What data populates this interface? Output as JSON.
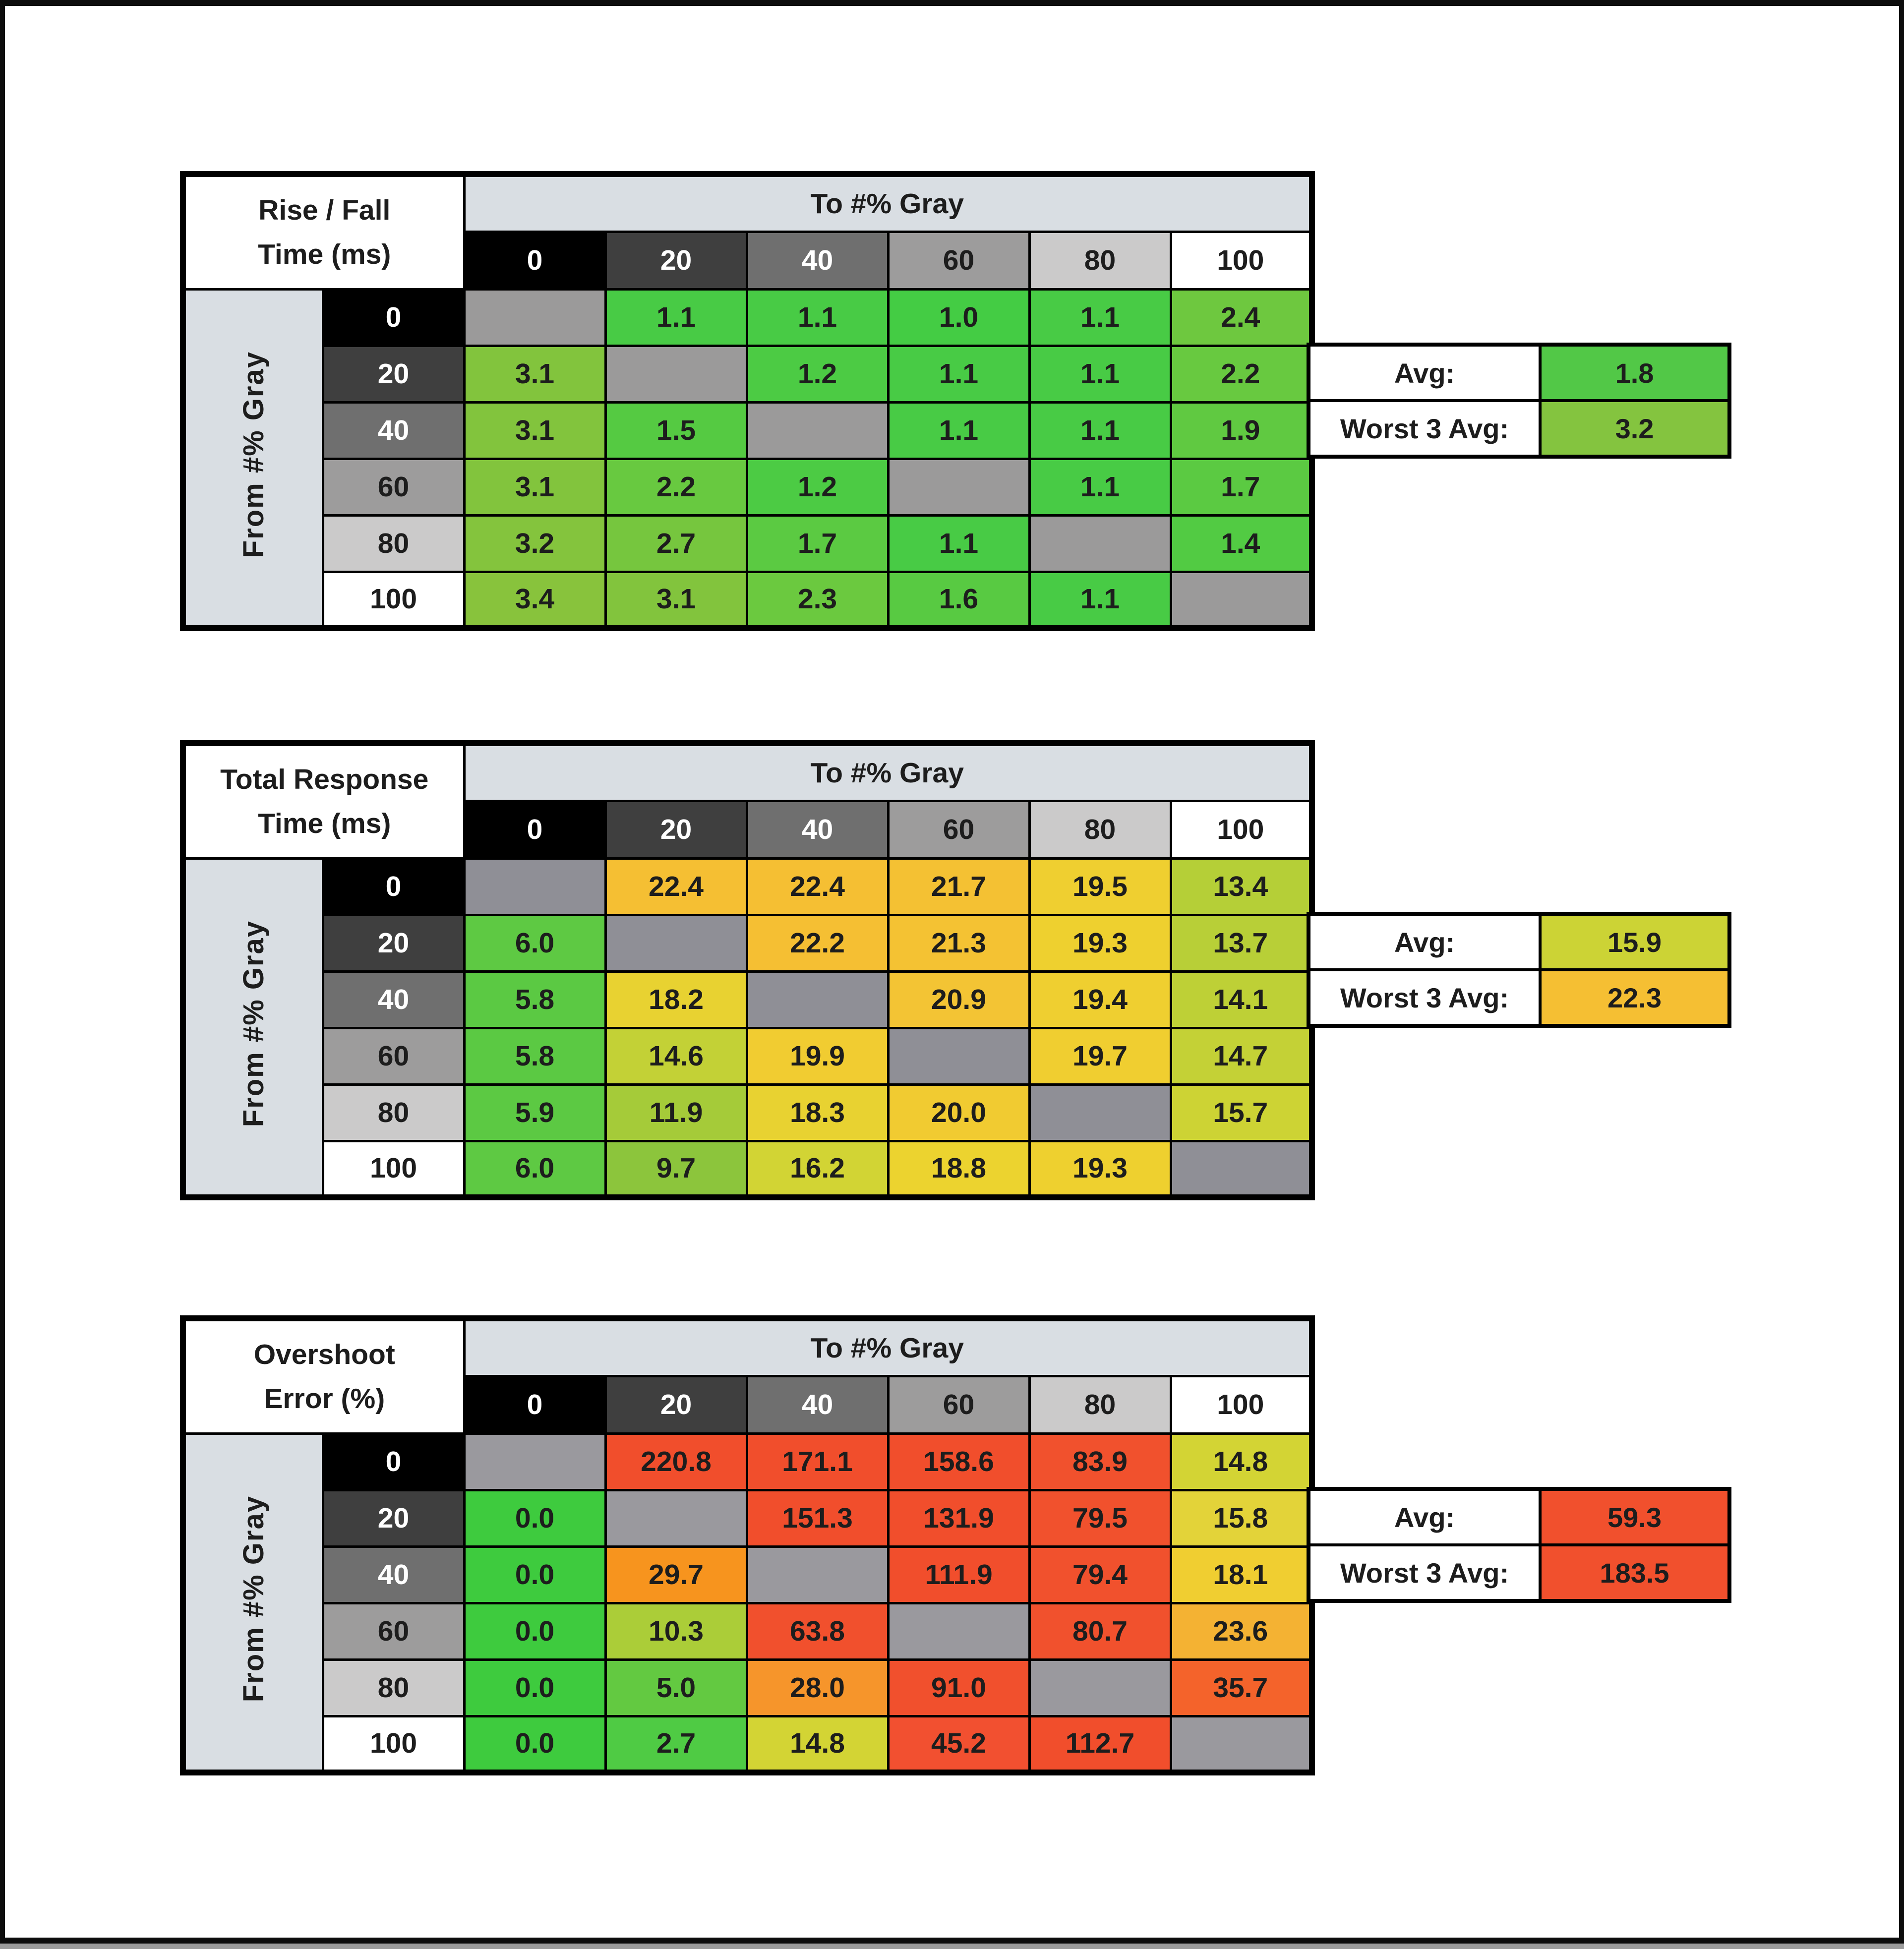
{
  "page": {
    "background": "#ffffff",
    "frame_color": "#0d0d0d",
    "bottom_strip_color": "#9c9c9c"
  },
  "header_shades": [
    {
      "bg": "#000000",
      "fg": "#ffffff"
    },
    {
      "bg": "#3f3f3f",
      "fg": "#ffffff"
    },
    {
      "bg": "#6f6f6f",
      "fg": "#ffffff"
    },
    {
      "bg": "#9d9c9c",
      "fg": "#1d1d1d"
    },
    {
      "bg": "#cbcaca",
      "fg": "#1d1d1d"
    },
    {
      "bg": "#ffffff",
      "fg": "#1d1d1d"
    }
  ],
  "banner_bg": "#d9dee3",
  "tables": [
    {
      "title_line1": "Rise / Fall",
      "title_line2": "Time (ms)",
      "banner": "To #% Gray",
      "row_axis_label": "From #% Gray",
      "col_headers": [
        "0",
        "20",
        "40",
        "60",
        "80",
        "100"
      ],
      "row_headers": [
        "0",
        "20",
        "40",
        "60",
        "80",
        "100"
      ],
      "diagonal_color": "#9b9a9a",
      "rows": [
        [
          null,
          {
            "v": "1.1",
            "c": "#48cb45"
          },
          {
            "v": "1.1",
            "c": "#48cb45"
          },
          {
            "v": "1.0",
            "c": "#44cc44"
          },
          {
            "v": "1.1",
            "c": "#48cb45"
          },
          {
            "v": "2.4",
            "c": "#6ec83f"
          }
        ],
        [
          {
            "v": "3.1",
            "c": "#82c43d"
          },
          null,
          {
            "v": "1.2",
            "c": "#4ccb44"
          },
          {
            "v": "1.1",
            "c": "#48cb45"
          },
          {
            "v": "1.1",
            "c": "#48cb45"
          },
          {
            "v": "2.2",
            "c": "#68c940"
          }
        ],
        [
          {
            "v": "3.1",
            "c": "#82c43d"
          },
          {
            "v": "1.5",
            "c": "#55ca42"
          },
          null,
          {
            "v": "1.1",
            "c": "#48cb45"
          },
          {
            "v": "1.1",
            "c": "#48cb45"
          },
          {
            "v": "1.9",
            "c": "#60c941"
          }
        ],
        [
          {
            "v": "3.1",
            "c": "#82c43d"
          },
          {
            "v": "2.2",
            "c": "#68c940"
          },
          {
            "v": "1.2",
            "c": "#4ccb44"
          },
          null,
          {
            "v": "1.1",
            "c": "#48cb45"
          },
          {
            "v": "1.7",
            "c": "#5bca42"
          }
        ],
        [
          {
            "v": "3.2",
            "c": "#84c43d"
          },
          {
            "v": "2.7",
            "c": "#76c63e"
          },
          {
            "v": "1.7",
            "c": "#5bca42"
          },
          {
            "v": "1.1",
            "c": "#48cb45"
          },
          null,
          {
            "v": "1.4",
            "c": "#52cb43"
          }
        ],
        [
          {
            "v": "3.4",
            "c": "#88c33c"
          },
          {
            "v": "3.1",
            "c": "#82c43d"
          },
          {
            "v": "2.3",
            "c": "#6bc93f"
          },
          {
            "v": "1.6",
            "c": "#58ca42"
          },
          {
            "v": "1.1",
            "c": "#48cb45"
          },
          null
        ]
      ],
      "summary": {
        "avg_label": "Avg:",
        "avg_value": "1.8",
        "avg_color": "#52c847",
        "worst_label": "Worst 3 Avg:",
        "worst_value": "3.2",
        "worst_color": "#84c43f"
      }
    },
    {
      "title_line1": "Total Response",
      "title_line2": "Time (ms)",
      "banner": "To #% Gray",
      "row_axis_label": "From #% Gray",
      "col_headers": [
        "0",
        "20",
        "40",
        "60",
        "80",
        "100"
      ],
      "row_headers": [
        "0",
        "20",
        "40",
        "60",
        "80",
        "100"
      ],
      "diagonal_color": "#8f8f96",
      "rows": [
        [
          null,
          {
            "v": "22.4",
            "c": "#f5bf33"
          },
          {
            "v": "22.4",
            "c": "#f5bf33"
          },
          {
            "v": "21.7",
            "c": "#f4c133"
          },
          {
            "v": "19.5",
            "c": "#efcf30"
          },
          {
            "v": "13.4",
            "c": "#b5cf37"
          }
        ],
        [
          {
            "v": "6.0",
            "c": "#5ec943"
          },
          null,
          {
            "v": "22.2",
            "c": "#f5bf33"
          },
          {
            "v": "21.3",
            "c": "#f4c233"
          },
          {
            "v": "19.3",
            "c": "#eed02f"
          },
          {
            "v": "13.7",
            "c": "#b8cf37"
          }
        ],
        [
          {
            "v": "5.8",
            "c": "#5bc943"
          },
          {
            "v": "18.2",
            "c": "#e8d231"
          },
          null,
          {
            "v": "20.9",
            "c": "#f3c434"
          },
          {
            "v": "19.4",
            "c": "#efcf30"
          },
          {
            "v": "14.1",
            "c": "#bed036"
          }
        ],
        [
          {
            "v": "5.8",
            "c": "#5bc943"
          },
          {
            "v": "14.6",
            "c": "#c3d136"
          },
          {
            "v": "19.9",
            "c": "#f1cc31"
          },
          null,
          {
            "v": "19.7",
            "c": "#f0ce30"
          },
          {
            "v": "14.7",
            "c": "#c4d136"
          }
        ],
        [
          {
            "v": "5.9",
            "c": "#5cc943"
          },
          {
            "v": "11.9",
            "c": "#a5cb39"
          },
          {
            "v": "18.3",
            "c": "#e8d231"
          },
          {
            "v": "20.0",
            "c": "#f1cb31"
          },
          null,
          {
            "v": "15.7",
            "c": "#cdd334"
          }
        ],
        [
          {
            "v": "6.0",
            "c": "#5ec943"
          },
          {
            "v": "9.7",
            "c": "#8cc53c"
          },
          {
            "v": "16.2",
            "c": "#d2d434"
          },
          {
            "v": "18.8",
            "c": "#ecd32f"
          },
          {
            "v": "19.3",
            "c": "#eed02f"
          },
          null
        ]
      ],
      "summary": {
        "avg_label": "Avg:",
        "avg_value": "15.9",
        "avg_color": "#ccd335",
        "worst_label": "Worst 3 Avg:",
        "worst_value": "22.3",
        "worst_color": "#f5bf33"
      }
    },
    {
      "title_line1": "Overshoot",
      "title_line2": "Error (%)",
      "banner": "To #% Gray",
      "row_axis_label": "From #% Gray",
      "col_headers": [
        "0",
        "20",
        "40",
        "60",
        "80",
        "100"
      ],
      "row_headers": [
        "0",
        "20",
        "40",
        "60",
        "80",
        "100"
      ],
      "diagonal_color": "#9a999e",
      "rows": [
        [
          null,
          {
            "v": "220.8",
            "c": "#f14e2c"
          },
          {
            "v": "171.1",
            "c": "#f14e2c"
          },
          {
            "v": "158.6",
            "c": "#f14e2c"
          },
          {
            "v": "83.9",
            "c": "#f1512d"
          },
          {
            "v": "14.8",
            "c": "#d3d434"
          }
        ],
        [
          {
            "v": "0.0",
            "c": "#3ecb3e"
          },
          null,
          {
            "v": "151.3",
            "c": "#f14e2c"
          },
          {
            "v": "131.9",
            "c": "#f14e2c"
          },
          {
            "v": "79.5",
            "c": "#f1512d"
          },
          {
            "v": "15.8",
            "c": "#e3d339"
          }
        ],
        [
          {
            "v": "0.0",
            "c": "#3ecb3e"
          },
          {
            "v": "29.7",
            "c": "#f7941e"
          },
          null,
          {
            "v": "111.9",
            "c": "#f14e2c"
          },
          {
            "v": "79.4",
            "c": "#f1512d"
          },
          {
            "v": "18.1",
            "c": "#f0ce31"
          }
        ],
        [
          {
            "v": "0.0",
            "c": "#3ecb3e"
          },
          {
            "v": "10.3",
            "c": "#abcd38"
          },
          {
            "v": "63.8",
            "c": "#f1502d"
          },
          null,
          {
            "v": "80.7",
            "c": "#f1512d"
          },
          {
            "v": "23.6",
            "c": "#f4b233"
          }
        ],
        [
          {
            "v": "0.0",
            "c": "#3ecb3e"
          },
          {
            "v": "5.0",
            "c": "#63c941"
          },
          {
            "v": "28.0",
            "c": "#f6952b"
          },
          {
            "v": "91.0",
            "c": "#f1502d"
          },
          null,
          {
            "v": "35.7",
            "c": "#f4632b"
          }
        ],
        [
          {
            "v": "0.0",
            "c": "#3ecb3e"
          },
          {
            "v": "2.7",
            "c": "#4fcb44"
          },
          {
            "v": "14.8",
            "c": "#d3d434"
          },
          {
            "v": "45.2",
            "c": "#f25030"
          },
          {
            "v": "112.7",
            "c": "#f14e2c"
          },
          null
        ]
      ],
      "summary": {
        "avg_label": "Avg:",
        "avg_value": "59.3",
        "avg_color": "#f1502d",
        "worst_label": "Worst 3 Avg:",
        "worst_value": "183.5",
        "worst_color": "#f1502d"
      }
    }
  ],
  "chart_data": [
    {
      "type": "heatmap",
      "title": "Rise / Fall Time (ms)",
      "xlabel": "To #% Gray",
      "ylabel": "From #% Gray",
      "x_categories": [
        0,
        20,
        40,
        60,
        80,
        100
      ],
      "y_categories": [
        0,
        20,
        40,
        60,
        80,
        100
      ],
      "values": [
        [
          null,
          1.1,
          1.1,
          1.0,
          1.1,
          2.4
        ],
        [
          3.1,
          null,
          1.2,
          1.1,
          1.1,
          2.2
        ],
        [
          3.1,
          1.5,
          null,
          1.1,
          1.1,
          1.9
        ],
        [
          3.1,
          2.2,
          1.2,
          null,
          1.1,
          1.7
        ],
        [
          3.2,
          2.7,
          1.7,
          1.1,
          null,
          1.4
        ],
        [
          3.4,
          3.1,
          2.3,
          1.6,
          1.1,
          null
        ]
      ],
      "avg": 1.8,
      "worst_3_avg": 3.2
    },
    {
      "type": "heatmap",
      "title": "Total Response Time (ms)",
      "xlabel": "To #% Gray",
      "ylabel": "From #% Gray",
      "x_categories": [
        0,
        20,
        40,
        60,
        80,
        100
      ],
      "y_categories": [
        0,
        20,
        40,
        60,
        80,
        100
      ],
      "values": [
        [
          null,
          22.4,
          22.4,
          21.7,
          19.5,
          13.4
        ],
        [
          6.0,
          null,
          22.2,
          21.3,
          19.3,
          13.7
        ],
        [
          5.8,
          18.2,
          null,
          20.9,
          19.4,
          14.1
        ],
        [
          5.8,
          14.6,
          19.9,
          null,
          19.7,
          14.7
        ],
        [
          5.9,
          11.9,
          18.3,
          20.0,
          null,
          15.7
        ],
        [
          6.0,
          9.7,
          16.2,
          18.8,
          19.3,
          null
        ]
      ],
      "avg": 15.9,
      "worst_3_avg": 22.3
    },
    {
      "type": "heatmap",
      "title": "Overshoot Error (%)",
      "xlabel": "To #% Gray",
      "ylabel": "From #% Gray",
      "x_categories": [
        0,
        20,
        40,
        60,
        80,
        100
      ],
      "y_categories": [
        0,
        20,
        40,
        60,
        80,
        100
      ],
      "values": [
        [
          null,
          220.8,
          171.1,
          158.6,
          83.9,
          14.8
        ],
        [
          0.0,
          null,
          151.3,
          131.9,
          79.5,
          15.8
        ],
        [
          0.0,
          29.7,
          null,
          111.9,
          79.4,
          18.1
        ],
        [
          0.0,
          10.3,
          63.8,
          null,
          80.7,
          23.6
        ],
        [
          0.0,
          5.0,
          28.0,
          91.0,
          null,
          35.7
        ],
        [
          0.0,
          2.7,
          14.8,
          45.2,
          112.7,
          null
        ]
      ],
      "avg": 59.3,
      "worst_3_avg": 183.5
    }
  ]
}
